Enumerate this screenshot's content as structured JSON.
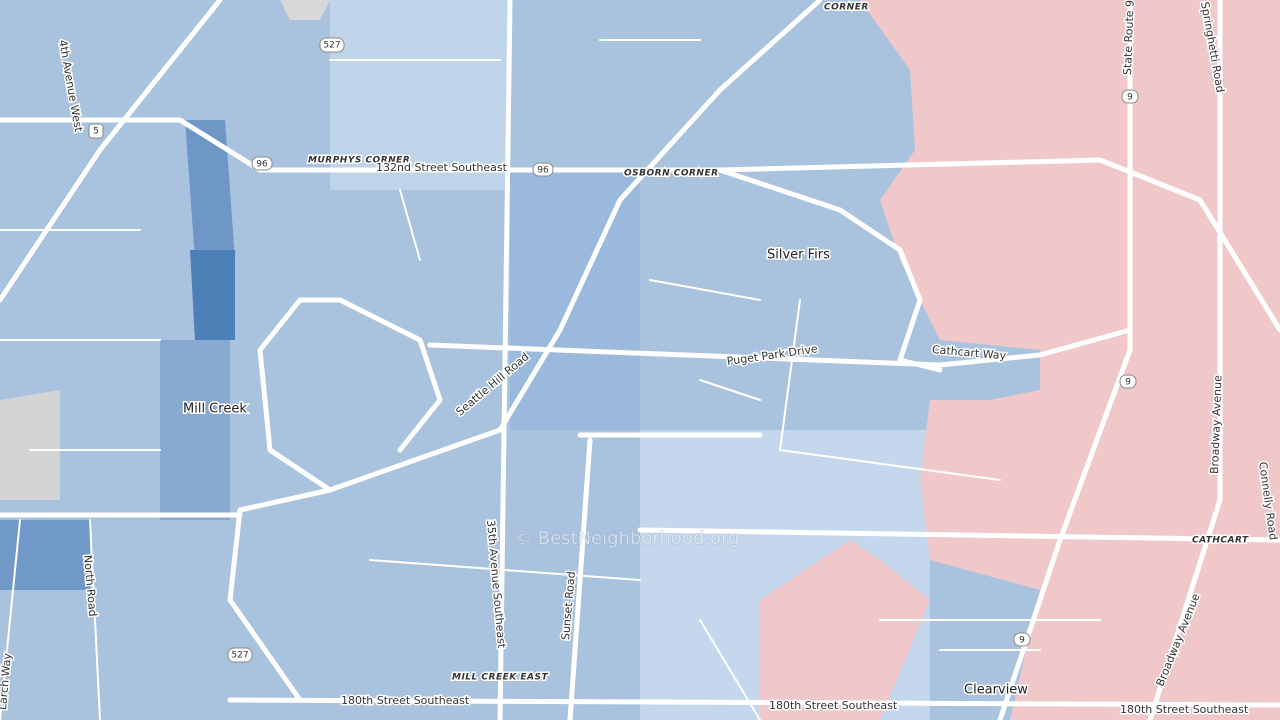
{
  "map": {
    "places": [
      "Mill Creek",
      "Silver Firs",
      "Clearview",
      "MURPHYS CORNER",
      "OSBORN CORNER",
      "CORNER",
      "MILL CREEK EAST",
      "CATHCART"
    ],
    "roads": [
      "132nd Street Southeast",
      "4th Avenue West",
      "Seattle Hill Road",
      "35th Avenue Southeast",
      "Sunset Road",
      "North Road",
      "Larch Way",
      "Puget Park Drive",
      "Cathcart Way",
      "State Route 9",
      "Springhetti Road",
      "Broadway Avenue",
      "Broadway Avenue",
      "Connelly Road",
      "180th Street Southeast",
      "180th Street Southeast",
      "180th Street Southeast"
    ],
    "shields": [
      "527",
      "527",
      "5",
      "96",
      "96",
      "9",
      "9",
      "9"
    ],
    "attribution": "© BestNeighborhood.org"
  }
}
